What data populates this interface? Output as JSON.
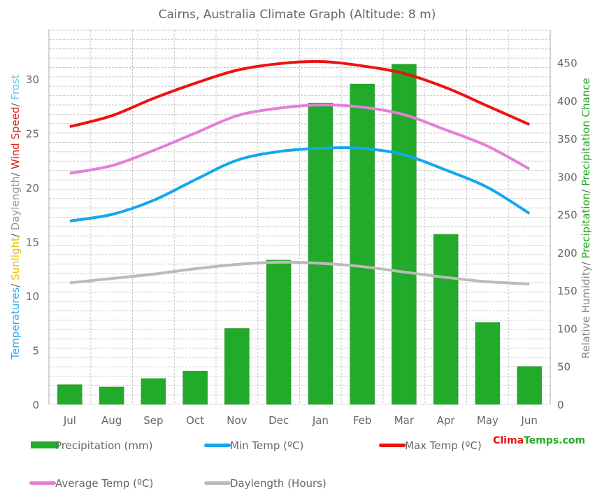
{
  "chart_data": {
    "type": "bar",
    "title": "Cairns, Australia Climate Graph (Altitude: 8 m)",
    "categories": [
      "Jul",
      "Aug",
      "Sep",
      "Oct",
      "Nov",
      "Dec",
      "Jan",
      "Feb",
      "Mar",
      "Apr",
      "May",
      "Jun"
    ],
    "left_axis": {
      "ticks": [
        0,
        5,
        10,
        15,
        20,
        25,
        30
      ],
      "ylim": [
        0,
        34.5
      ],
      "label_parts": [
        {
          "text": "Temperatures",
          "color": "#33aaee"
        },
        {
          "text": "/",
          "color": "#666666"
        },
        {
          "text": " Sunlight",
          "color": "#e6c200"
        },
        {
          "text": "/",
          "color": "#666666"
        },
        {
          "text": " Daylength",
          "color": "#999999"
        },
        {
          "text": "/",
          "color": "#666666"
        },
        {
          "text": " Wind Speed",
          "color": "#dd2222"
        },
        {
          "text": "/",
          "color": "#666666"
        },
        {
          "text": " Frost",
          "color": "#55ccee"
        }
      ]
    },
    "right_axis": {
      "ticks": [
        0,
        50,
        100,
        150,
        200,
        250,
        300,
        350,
        400,
        450
      ],
      "ylim": [
        0,
        493
      ],
      "label_parts": [
        {
          "text": "Relative Humidity",
          "color": "#888888"
        },
        {
          "text": "/",
          "color": "#666666"
        },
        {
          "text": " Precipitation",
          "color": "#22aa22"
        },
        {
          "text": "/",
          "color": "#666666"
        },
        {
          "text": " Precipitation Chance",
          "color": "#22aa22"
        }
      ]
    },
    "grid": true,
    "series": [
      {
        "name": "Precipitation (mm)",
        "kind": "bar",
        "axis": "right",
        "color": "#22aa2a",
        "values": [
          26,
          23,
          34,
          44,
          100,
          190,
          397,
          422,
          448,
          224,
          108,
          50
        ]
      },
      {
        "name": "Min Temp (ºC)",
        "kind": "line",
        "axis": "left",
        "color": "#11a8ee",
        "values": [
          16.9,
          17.5,
          18.8,
          20.7,
          22.5,
          23.3,
          23.6,
          23.6,
          23.0,
          21.6,
          20.0,
          17.6
        ]
      },
      {
        "name": "Max Temp (ºC)",
        "kind": "line",
        "axis": "left",
        "color": "#ee1111",
        "values": [
          25.6,
          26.6,
          28.2,
          29.6,
          30.8,
          31.4,
          31.6,
          31.2,
          30.5,
          29.2,
          27.5,
          25.8
        ]
      },
      {
        "name": "Average Temp (ºC)",
        "kind": "line",
        "axis": "left",
        "color": "#e47fd8",
        "values": [
          21.3,
          22.0,
          23.4,
          25.0,
          26.6,
          27.3,
          27.6,
          27.4,
          26.7,
          25.3,
          23.8,
          21.7
        ]
      },
      {
        "name": "Daylength (Hours)",
        "kind": "line",
        "axis": "left",
        "color": "#bbbbbb",
        "values": [
          11.2,
          11.6,
          12.0,
          12.5,
          12.9,
          13.1,
          13.0,
          12.7,
          12.2,
          11.7,
          11.3,
          11.1
        ]
      }
    ],
    "legend_position": "bottom"
  },
  "brand": {
    "part1": "Clima",
    "part2": "Temps",
    "part3": ".com",
    "color1": "#dd1111",
    "color2": "#22aa22"
  }
}
